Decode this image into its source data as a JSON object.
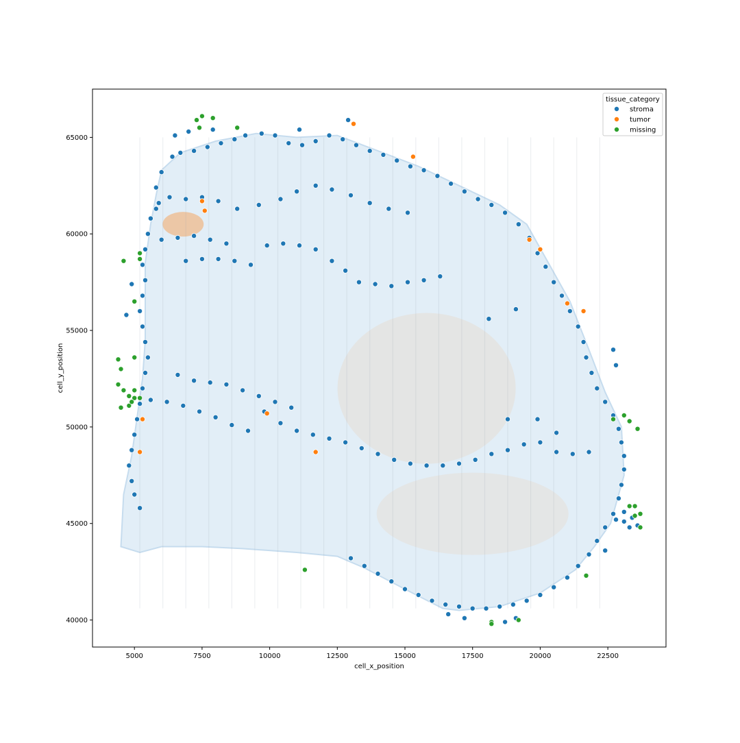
{
  "chart_data": {
    "type": "scatter",
    "title": "",
    "xlabel": "cell_x_position",
    "ylabel": "cell_y_position",
    "xlim": [
      3450,
      24650
    ],
    "ylim": [
      38600,
      67500
    ],
    "xticks": [
      5000,
      7500,
      10000,
      12500,
      15000,
      17500,
      20000,
      22500
    ],
    "xtick_labels": [
      "5000",
      "7500",
      "10000",
      "12500",
      "15000",
      "17500",
      "20000",
      "22500"
    ],
    "yticks": [
      40000,
      45000,
      50000,
      55000,
      60000,
      65000
    ],
    "ytick_labels": [
      "40000",
      "45000",
      "50000",
      "55000",
      "60000",
      "65000"
    ],
    "grid": false,
    "legend": {
      "title": "tissue_category",
      "placement": "top-right",
      "entries": [
        "stroma",
        "tumor",
        "missing"
      ]
    },
    "colors": {
      "stroma": "#1f77b4",
      "tumor": "#ff7f0e",
      "missing": "#2ca02c"
    },
    "series": [
      {
        "name": "stroma",
        "points": [
          [
            6700,
            64200
          ],
          [
            7200,
            64300
          ],
          [
            7700,
            64500
          ],
          [
            8200,
            64700
          ],
          [
            8700,
            64900
          ],
          [
            9100,
            65100
          ],
          [
            9700,
            65200
          ],
          [
            10200,
            65100
          ],
          [
            10700,
            64700
          ],
          [
            11200,
            64600
          ],
          [
            11700,
            64800
          ],
          [
            12200,
            65100
          ],
          [
            12700,
            64900
          ],
          [
            13200,
            64600
          ],
          [
            13700,
            64300
          ],
          [
            14200,
            64100
          ],
          [
            14700,
            63800
          ],
          [
            15200,
            63500
          ],
          [
            15700,
            63300
          ],
          [
            16200,
            63000
          ],
          [
            16700,
            62600
          ],
          [
            17200,
            62200
          ],
          [
            17700,
            61800
          ],
          [
            18200,
            61500
          ],
          [
            18700,
            61100
          ],
          [
            19200,
            60500
          ],
          [
            19600,
            59800
          ],
          [
            19900,
            59000
          ],
          [
            20200,
            58300
          ],
          [
            20500,
            57500
          ],
          [
            20800,
            56800
          ],
          [
            21100,
            56000
          ],
          [
            21400,
            55200
          ],
          [
            21600,
            54400
          ],
          [
            21700,
            53600
          ],
          [
            21900,
            52800
          ],
          [
            22100,
            52000
          ],
          [
            22400,
            51300
          ],
          [
            22700,
            50600
          ],
          [
            22900,
            49900
          ],
          [
            23000,
            49200
          ],
          [
            23100,
            48500
          ],
          [
            23100,
            47800
          ],
          [
            23000,
            47000
          ],
          [
            22900,
            46300
          ],
          [
            22700,
            45500
          ],
          [
            22400,
            44800
          ],
          [
            22100,
            44100
          ],
          [
            21800,
            43400
          ],
          [
            21400,
            42800
          ],
          [
            21000,
            42200
          ],
          [
            20500,
            41700
          ],
          [
            20000,
            41300
          ],
          [
            19500,
            41000
          ],
          [
            19000,
            40800
          ],
          [
            18500,
            40700
          ],
          [
            18000,
            40600
          ],
          [
            17500,
            40600
          ],
          [
            17000,
            40700
          ],
          [
            16500,
            40800
          ],
          [
            16000,
            41000
          ],
          [
            15500,
            41300
          ],
          [
            15000,
            41600
          ],
          [
            14500,
            42000
          ],
          [
            14000,
            42400
          ],
          [
            13500,
            42800
          ],
          [
            13000,
            43200
          ],
          [
            6400,
            64000
          ],
          [
            6000,
            63200
          ],
          [
            5800,
            62400
          ],
          [
            5900,
            61600
          ],
          [
            5600,
            60800
          ],
          [
            5500,
            60000
          ],
          [
            5400,
            59200
          ],
          [
            5300,
            58400
          ],
          [
            5400,
            57600
          ],
          [
            5300,
            56800
          ],
          [
            5200,
            56000
          ],
          [
            5300,
            55200
          ],
          [
            5400,
            54400
          ],
          [
            5500,
            53600
          ],
          [
            5400,
            52800
          ],
          [
            5300,
            52000
          ],
          [
            5200,
            51200
          ],
          [
            5100,
            50400
          ],
          [
            5000,
            49600
          ],
          [
            4900,
            48800
          ],
          [
            4800,
            48000
          ],
          [
            4900,
            47200
          ],
          [
            5000,
            46500
          ],
          [
            5200,
            45800
          ],
          [
            5600,
            51400
          ],
          [
            6200,
            51300
          ],
          [
            6800,
            51100
          ],
          [
            7400,
            50800
          ],
          [
            8000,
            50500
          ],
          [
            8600,
            50100
          ],
          [
            9200,
            49800
          ],
          [
            9800,
            50800
          ],
          [
            10400,
            50200
          ],
          [
            11000,
            49800
          ],
          [
            11600,
            49600
          ],
          [
            12200,
            49400
          ],
          [
            12800,
            49200
          ],
          [
            13400,
            48900
          ],
          [
            14000,
            48600
          ],
          [
            14600,
            48300
          ],
          [
            15200,
            48100
          ],
          [
            15800,
            48000
          ],
          [
            16400,
            48000
          ],
          [
            17000,
            48100
          ],
          [
            17600,
            48300
          ],
          [
            18200,
            48600
          ],
          [
            18800,
            48800
          ],
          [
            19400,
            49100
          ],
          [
            20000,
            49200
          ],
          [
            20600,
            48700
          ],
          [
            21200,
            48600
          ],
          [
            21800,
            48700
          ],
          [
            6600,
            52700
          ],
          [
            7200,
            52400
          ],
          [
            7800,
            52300
          ],
          [
            8400,
            52200
          ],
          [
            9000,
            51900
          ],
          [
            9600,
            51600
          ],
          [
            10200,
            51300
          ],
          [
            10800,
            51000
          ],
          [
            6000,
            59700
          ],
          [
            6600,
            59800
          ],
          [
            7200,
            59900
          ],
          [
            7800,
            59700
          ],
          [
            8400,
            59500
          ],
          [
            6900,
            58600
          ],
          [
            7500,
            58700
          ],
          [
            8100,
            58700
          ],
          [
            8700,
            58600
          ],
          [
            9300,
            58400
          ],
          [
            9900,
            59400
          ],
          [
            10500,
            59500
          ],
          [
            11100,
            59400
          ],
          [
            11700,
            59200
          ],
          [
            12300,
            58600
          ],
          [
            12800,
            58100
          ],
          [
            13300,
            57500
          ],
          [
            13900,
            57400
          ],
          [
            14500,
            57300
          ],
          [
            15100,
            57500
          ],
          [
            15700,
            57600
          ],
          [
            16300,
            57800
          ],
          [
            5800,
            61300
          ],
          [
            6300,
            61900
          ],
          [
            6900,
            61800
          ],
          [
            7500,
            61900
          ],
          [
            8100,
            61700
          ],
          [
            8800,
            61300
          ],
          [
            9600,
            61500
          ],
          [
            10400,
            61800
          ],
          [
            11000,
            62200
          ],
          [
            11700,
            62500
          ],
          [
            12300,
            62300
          ],
          [
            13000,
            62000
          ],
          [
            13700,
            61600
          ],
          [
            14400,
            61300
          ],
          [
            15100,
            61100
          ],
          [
            19100,
            56100
          ],
          [
            18100,
            55600
          ],
          [
            18800,
            50400
          ],
          [
            19900,
            50400
          ],
          [
            20600,
            49700
          ],
          [
            22700,
            54000
          ],
          [
            22800,
            53200
          ],
          [
            12900,
            65900
          ],
          [
            11100,
            65400
          ],
          [
            7000,
            65300
          ],
          [
            6500,
            65100
          ],
          [
            7900,
            65400
          ],
          [
            22400,
            43600
          ],
          [
            18700,
            39900
          ],
          [
            19100,
            40100
          ],
          [
            4700,
            55800
          ],
          [
            4900,
            57400
          ],
          [
            22800,
            45200
          ],
          [
            23100,
            45100
          ],
          [
            23400,
            45300
          ],
          [
            23600,
            44900
          ],
          [
            23300,
            44800
          ],
          [
            23100,
            45600
          ],
          [
            16600,
            40300
          ],
          [
            17200,
            40100
          ]
        ]
      },
      {
        "name": "tumor",
        "points": [
          [
            7500,
            61700
          ],
          [
            7600,
            61200
          ],
          [
            9900,
            50700
          ],
          [
            11700,
            48700
          ],
          [
            15300,
            64000
          ],
          [
            19600,
            59700
          ],
          [
            20000,
            59200
          ],
          [
            21600,
            56000
          ],
          [
            13100,
            65700
          ],
          [
            5200,
            48700
          ],
          [
            21000,
            56400
          ],
          [
            5300,
            50400
          ]
        ]
      },
      {
        "name": "missing",
        "points": [
          [
            7300,
            65900
          ],
          [
            7500,
            66100
          ],
          [
            7900,
            66000
          ],
          [
            7400,
            65500
          ],
          [
            8800,
            65500
          ],
          [
            4400,
            53500
          ],
          [
            4500,
            53000
          ],
          [
            4400,
            52200
          ],
          [
            4600,
            51900
          ],
          [
            4800,
            51600
          ],
          [
            5000,
            51500
          ],
          [
            5200,
            51500
          ],
          [
            4800,
            51100
          ],
          [
            4500,
            51000
          ],
          [
            5000,
            51900
          ],
          [
            4600,
            58600
          ],
          [
            5200,
            58700
          ],
          [
            5200,
            59000
          ],
          [
            5000,
            56500
          ],
          [
            5000,
            53600
          ],
          [
            4900,
            51300
          ],
          [
            11300,
            42600
          ],
          [
            18200,
            39900
          ],
          [
            19200,
            40000
          ],
          [
            21700,
            42300
          ],
          [
            23100,
            50600
          ],
          [
            23300,
            50300
          ],
          [
            23600,
            49900
          ],
          [
            22700,
            50400
          ],
          [
            23500,
            45900
          ],
          [
            23700,
            45500
          ],
          [
            23300,
            45900
          ],
          [
            23700,
            44800
          ],
          [
            23500,
            45400
          ],
          [
            18200,
            39800
          ]
        ]
      }
    ]
  }
}
